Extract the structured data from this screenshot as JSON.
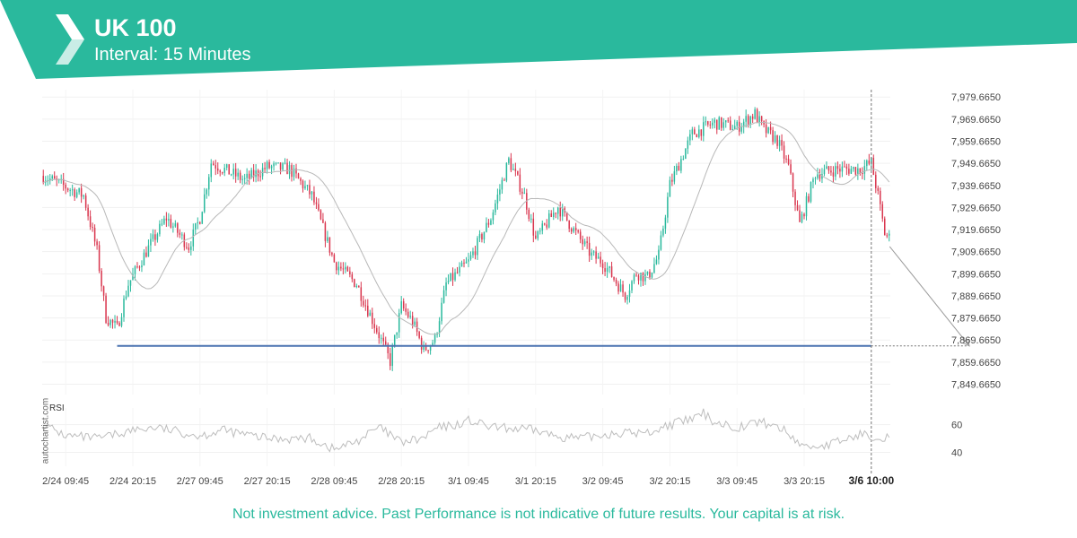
{
  "header": {
    "title": "UK 100",
    "subtitle": "Interval: 15 Minutes",
    "brand_color": "#2ab99d",
    "logo_icon": "autochartist-chevron-logo-icon"
  },
  "watermark": "autochartist.com",
  "disclaimer": "Not investment advice. Past Performance is not indicative of future results. Your capital is at risk.",
  "chart_data": {
    "type": "candlestick",
    "instrument": "UK 100",
    "interval": "15 Minutes",
    "y_axis": {
      "position": "right",
      "ticks": [
        "7,979.6650",
        "7,969.6650",
        "7,959.6650",
        "7,949.6650",
        "7,939.6650",
        "7,929.6650",
        "7,919.6650",
        "7,909.6650",
        "7,899.6650",
        "7,889.6650",
        "7,879.6650",
        "7,869.6650",
        "7,859.6650",
        "7,849.6650"
      ],
      "tick_values": [
        7979.665,
        7969.665,
        7959.665,
        7949.665,
        7939.665,
        7929.665,
        7919.665,
        7909.665,
        7899.665,
        7889.665,
        7879.665,
        7869.665,
        7859.665,
        7849.665
      ],
      "range": [
        7845,
        7983
      ]
    },
    "x_axis": {
      "tick_labels": [
        "2/24 09:45",
        "2/24 20:15",
        "2/27 09:45",
        "2/27 20:15",
        "2/28 09:45",
        "2/28 20:15",
        "3/1 09:45",
        "3/1 20:15",
        "3/2 09:45",
        "3/2 20:15",
        "3/3 09:45",
        "3/3 20:15"
      ],
      "tick_slots": [
        10,
        40,
        70,
        100,
        130,
        160,
        190,
        220,
        250,
        280,
        310,
        340
      ],
      "current_label": "3/6 10:00",
      "current_slot": 370,
      "slot_count": 379
    },
    "series_waypoints": [
      [
        0,
        7944
      ],
      [
        12,
        7938
      ],
      [
        18,
        7935
      ],
      [
        24,
        7910
      ],
      [
        28,
        7880
      ],
      [
        33,
        7875
      ],
      [
        38,
        7895
      ],
      [
        45,
        7908
      ],
      [
        55,
        7925
      ],
      [
        65,
        7912
      ],
      [
        70,
        7925
      ],
      [
        75,
        7950
      ],
      [
        90,
        7942
      ],
      [
        100,
        7948
      ],
      [
        110,
        7947
      ],
      [
        120,
        7935
      ],
      [
        130,
        7905
      ],
      [
        140,
        7895
      ],
      [
        150,
        7872
      ],
      [
        155,
        7860
      ],
      [
        160,
        7885
      ],
      [
        165,
        7878
      ],
      [
        170,
        7865
      ],
      [
        175,
        7870
      ],
      [
        180,
        7895
      ],
      [
        190,
        7905
      ],
      [
        200,
        7925
      ],
      [
        208,
        7951
      ],
      [
        215,
        7935
      ],
      [
        220,
        7915
      ],
      [
        230,
        7930
      ],
      [
        240,
        7915
      ],
      [
        245,
        7908
      ],
      [
        250,
        7905
      ],
      [
        260,
        7890
      ],
      [
        265,
        7900
      ],
      [
        270,
        7898
      ],
      [
        275,
        7908
      ],
      [
        280,
        7940
      ],
      [
        290,
        7963
      ],
      [
        300,
        7968
      ],
      [
        310,
        7966
      ],
      [
        315,
        7970
      ],
      [
        318,
        7972
      ],
      [
        322,
        7965
      ],
      [
        328,
        7960
      ],
      [
        333,
        7948
      ],
      [
        338,
        7922
      ],
      [
        345,
        7945
      ],
      [
        355,
        7947
      ],
      [
        365,
        7947
      ],
      [
        370,
        7950
      ],
      [
        373,
        7935
      ],
      [
        376,
        7918
      ],
      [
        379,
        7915
      ]
    ],
    "series_seed": 7,
    "moving_average_period": 12,
    "support_line": {
      "value": 7867.0,
      "from_slot": 33,
      "to_slot": 370,
      "color": "#4a72b0"
    },
    "forecast": {
      "from_slot": 379,
      "from_value": 7912,
      "to_slot": 405,
      "to_value": 7867.0
    },
    "colors": {
      "up": "#2ab99d",
      "down": "#d9364e",
      "ma": "#b8b8b8"
    },
    "rsi": {
      "label": "RSI",
      "ticks": [
        "60",
        "40"
      ],
      "tick_values": [
        60,
        40
      ],
      "range": [
        30,
        72
      ],
      "waypoints": [
        [
          0,
          60
        ],
        [
          10,
          52
        ],
        [
          25,
          50
        ],
        [
          40,
          56
        ],
        [
          50,
          58
        ],
        [
          60,
          55
        ],
        [
          70,
          52
        ],
        [
          80,
          56
        ],
        [
          100,
          50
        ],
        [
          120,
          50
        ],
        [
          130,
          42
        ],
        [
          140,
          48
        ],
        [
          150,
          58
        ],
        [
          160,
          47
        ],
        [
          170,
          50
        ],
        [
          175,
          57
        ],
        [
          185,
          60
        ],
        [
          190,
          63
        ],
        [
          200,
          58
        ],
        [
          210,
          57
        ],
        [
          220,
          56
        ],
        [
          228,
          52
        ],
        [
          240,
          50
        ],
        [
          255,
          54
        ],
        [
          270,
          54
        ],
        [
          280,
          60
        ],
        [
          290,
          64
        ],
        [
          295,
          68
        ],
        [
          300,
          62
        ],
        [
          310,
          58
        ],
        [
          320,
          62
        ],
        [
          325,
          60
        ],
        [
          330,
          57
        ],
        [
          340,
          44
        ],
        [
          350,
          45
        ],
        [
          360,
          50
        ],
        [
          365,
          53
        ],
        [
          370,
          52
        ],
        [
          376,
          51
        ],
        [
          379,
          52
        ]
      ]
    }
  }
}
